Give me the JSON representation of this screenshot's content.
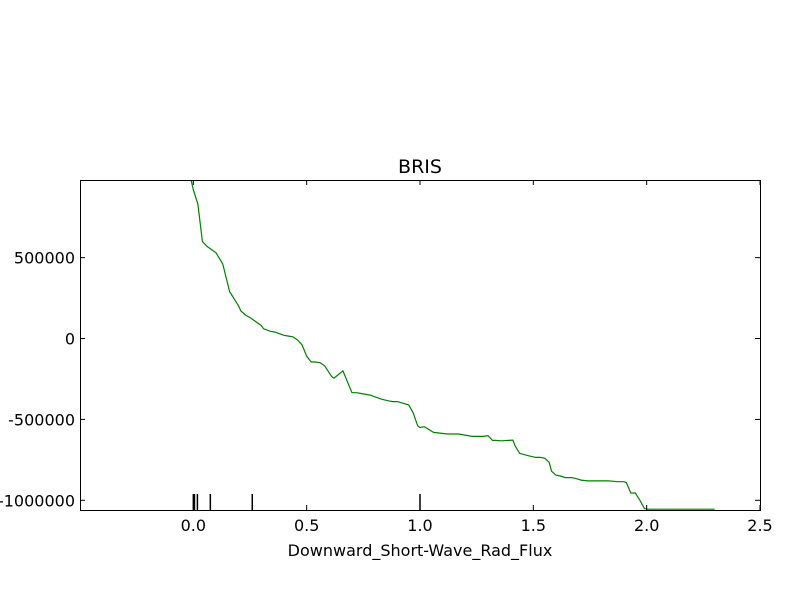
{
  "chart_data": {
    "type": "line",
    "title": "BRIS",
    "xlabel": "Downward_Short-Wave_Rad_Flux",
    "ylabel": "",
    "xlim": [
      -0.5,
      2.5
    ],
    "ylim": [
      -1060000,
      980000
    ],
    "x_ticks": [
      0.0,
      0.5,
      1.0,
      1.5,
      2.0,
      2.5
    ],
    "x_tick_labels": [
      "0.0",
      "0.5",
      "1.0",
      "1.5",
      "2.0",
      "2.5"
    ],
    "y_ticks": [
      500000,
      0,
      -500000,
      -1000000
    ],
    "y_tick_labels": [
      "500000",
      "0",
      "-500000",
      "-1000000"
    ],
    "grid": false,
    "series": [
      {
        "color": "#008000",
        "x": [
          -0.01,
          0.0,
          0.02,
          0.04,
          0.06,
          0.08,
          0.1,
          0.13,
          0.16,
          0.2,
          0.21,
          0.23,
          0.25,
          0.3,
          0.31,
          0.34,
          0.36,
          0.38,
          0.4,
          0.42,
          0.44,
          0.46,
          0.48,
          0.5,
          0.52,
          0.54,
          0.56,
          0.58,
          0.61,
          0.62,
          0.66,
          0.7,
          0.72,
          0.74,
          0.78,
          0.83,
          0.86,
          0.88,
          0.9,
          0.95,
          0.97,
          0.99,
          1.0,
          1.02,
          1.03,
          1.06,
          1.12,
          1.14,
          1.17,
          1.23,
          1.28,
          1.3,
          1.32,
          1.33,
          1.36,
          1.39,
          1.41,
          1.42,
          1.44,
          1.48,
          1.51,
          1.53,
          1.55,
          1.57,
          1.58,
          1.6,
          1.62,
          1.64,
          1.67,
          1.7,
          1.71,
          1.74,
          1.77,
          1.8,
          1.83,
          1.85,
          1.87,
          1.9,
          1.91,
          1.93,
          1.95,
          1.97,
          1.99,
          2.0,
          2.02,
          2.3
        ],
        "y": [
          980000,
          920000,
          830000,
          600000,
          570000,
          550000,
          530000,
          460000,
          290000,
          200000,
          170000,
          145000,
          130000,
          80000,
          60000,
          45000,
          40000,
          30000,
          20000,
          15000,
          10000,
          -10000,
          -40000,
          -110000,
          -145000,
          -145000,
          -150000,
          -170000,
          -235000,
          -245000,
          -200000,
          -335000,
          -335000,
          -340000,
          -350000,
          -375000,
          -385000,
          -390000,
          -390000,
          -410000,
          -460000,
          -540000,
          -550000,
          -545000,
          -555000,
          -580000,
          -590000,
          -590000,
          -590000,
          -605000,
          -605000,
          -600000,
          -630000,
          -630000,
          -632000,
          -630000,
          -628000,
          -665000,
          -710000,
          -725000,
          -735000,
          -735000,
          -740000,
          -765000,
          -820000,
          -845000,
          -850000,
          -860000,
          -860000,
          -870000,
          -875000,
          -880000,
          -880000,
          -880000,
          -880000,
          -882000,
          -885000,
          -885000,
          -890000,
          -955000,
          -955000,
          -1000000,
          -1050000,
          -1055000,
          -1055000,
          -1055000
        ]
      }
    ],
    "rug_x": [
      0.0,
      0.005,
      0.018,
      0.075,
      0.26,
      1.0
    ]
  }
}
